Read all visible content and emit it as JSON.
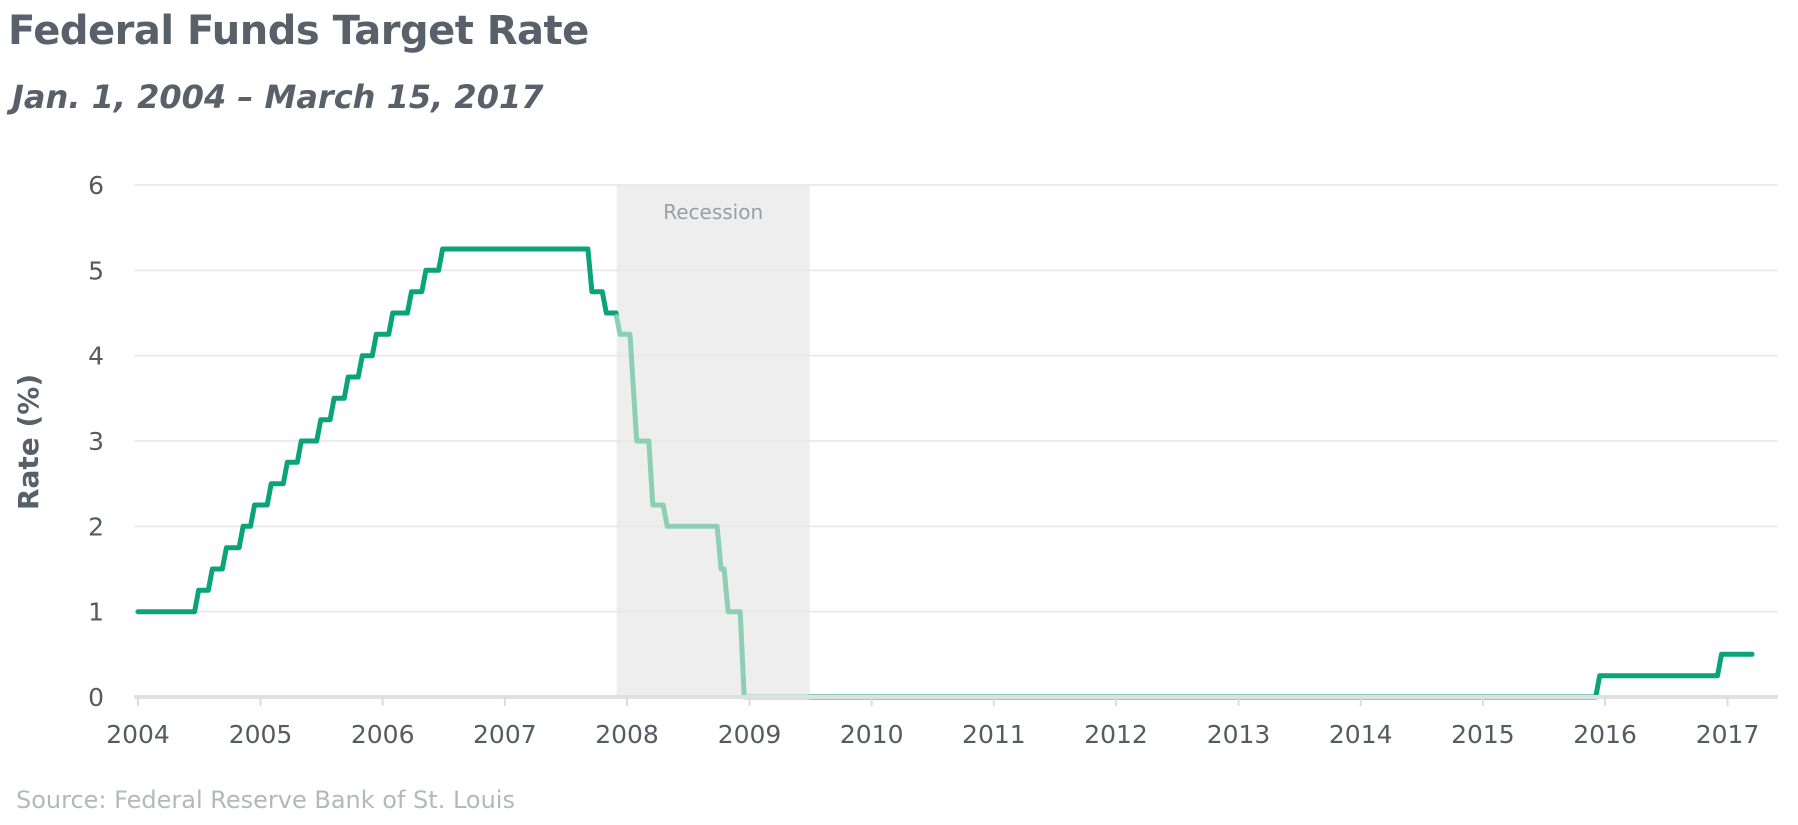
{
  "chart_data": {
    "type": "line",
    "title": "Federal Funds Target Rate",
    "subtitle": "Jan. 1, 2004 – March 15, 2017",
    "ylabel": "Rate (%)",
    "xlabel": "",
    "source": "Source: Federal Reserve Bank of St. Louis",
    "xlim": [
      "2004-01-01",
      "2017-03-15"
    ],
    "ylim": [
      0,
      6
    ],
    "x_ticks": [
      "2004",
      "2005",
      "2006",
      "2007",
      "2008",
      "2009",
      "2010",
      "2011",
      "2012",
      "2013",
      "2014",
      "2015",
      "2016",
      "2017"
    ],
    "y_ticks": [
      "0",
      "1",
      "2",
      "3",
      "4",
      "5",
      "6"
    ],
    "grid": true,
    "legend": "none",
    "line_color": "#0aa37a",
    "recession_line_color": "#8ccfb5",
    "recession_shade_color": "#eeeeee",
    "recession": {
      "label": "Recession",
      "start": "2007-12-01",
      "end": "2009-06-30"
    },
    "series": [
      {
        "points": [
          [
            "2004-01-01",
            1.0
          ],
          [
            "2004-06-30",
            1.25
          ],
          [
            "2004-08-10",
            1.5
          ],
          [
            "2004-09-21",
            1.75
          ],
          [
            "2004-11-10",
            2.0
          ],
          [
            "2004-12-14",
            2.25
          ],
          [
            "2005-02-02",
            2.5
          ],
          [
            "2005-03-22",
            2.75
          ],
          [
            "2005-05-03",
            3.0
          ],
          [
            "2005-06-30",
            3.25
          ],
          [
            "2005-08-09",
            3.5
          ],
          [
            "2005-09-20",
            3.75
          ],
          [
            "2005-11-01",
            4.0
          ],
          [
            "2005-12-13",
            4.25
          ],
          [
            "2006-01-31",
            4.5
          ],
          [
            "2006-03-28",
            4.75
          ],
          [
            "2006-05-10",
            5.0
          ],
          [
            "2006-06-29",
            5.25
          ],
          [
            "2007-09-18",
            4.75
          ],
          [
            "2007-10-31",
            4.5
          ],
          [
            "2007-12-11",
            4.25
          ],
          [
            "2008-01-22",
            3.5
          ],
          [
            "2008-01-30",
            3.0
          ],
          [
            "2008-03-18",
            2.25
          ],
          [
            "2008-04-30",
            2.0
          ],
          [
            "2008-10-08",
            1.5
          ],
          [
            "2008-10-29",
            1.0
          ],
          [
            "2008-12-16",
            0.0
          ],
          [
            "2015-12-16",
            0.25
          ],
          [
            "2016-12-14",
            0.5
          ],
          [
            "2017-03-15",
            0.5
          ]
        ]
      }
    ]
  }
}
